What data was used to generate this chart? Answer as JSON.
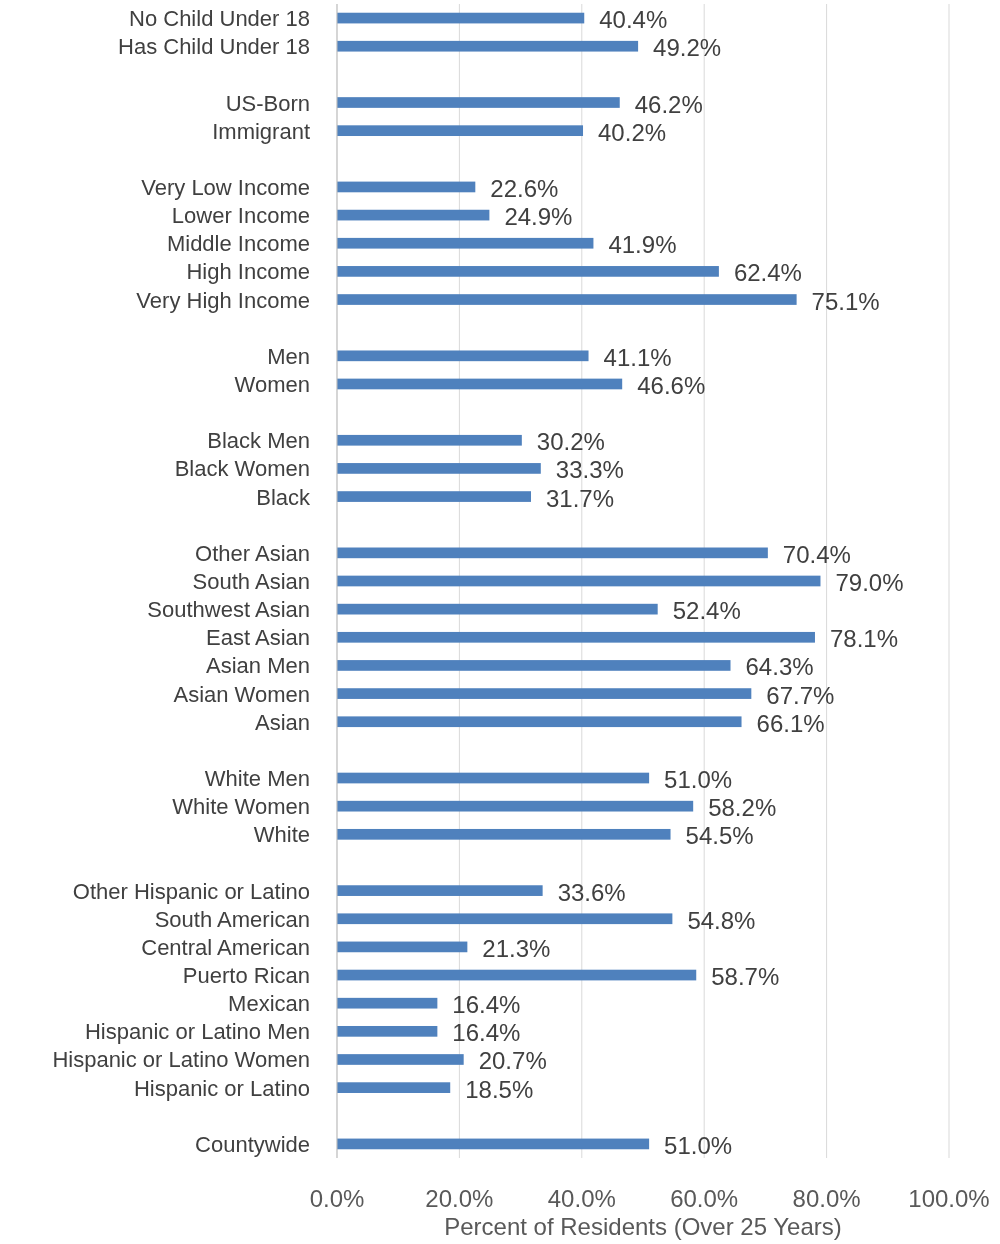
{
  "chart_data": {
    "type": "bar",
    "orientation": "horizontal",
    "xlabel": "Percent of Residents (Over 25 Years)",
    "categories": [
      "No Child Under 18",
      "Has Child Under 18",
      null,
      "US-Born",
      "Immigrant",
      null,
      "Very Low Income",
      "Lower Income",
      "Middle Income",
      "High Income",
      "Very High Income",
      null,
      "Men",
      "Women",
      null,
      "Black Men",
      "Black Women",
      "Black",
      null,
      "Other Asian",
      "South Asian",
      "Southwest Asian",
      "East Asian",
      "Asian Men",
      "Asian Women",
      "Asian",
      null,
      "White Men",
      "White Women",
      "White",
      null,
      "Other Hispanic or Latino",
      "South American",
      "Central American",
      "Puerto Rican",
      "Mexican",
      "Hispanic or Latino Men",
      "Hispanic or Latino Women",
      "Hispanic or Latino",
      null,
      "Countywide"
    ],
    "values": [
      40.4,
      49.2,
      null,
      46.2,
      40.2,
      null,
      22.6,
      24.9,
      41.9,
      62.4,
      75.1,
      null,
      41.1,
      46.6,
      null,
      30.2,
      33.3,
      31.7,
      null,
      70.4,
      79.0,
      52.4,
      78.1,
      64.3,
      67.7,
      66.1,
      null,
      51.0,
      58.2,
      54.5,
      null,
      33.6,
      54.8,
      21.3,
      58.7,
      16.4,
      16.4,
      20.7,
      18.5,
      null,
      51.0
    ],
    "value_labels": [
      "40.4%",
      "49.2%",
      null,
      "46.2%",
      "40.2%",
      null,
      "22.6%",
      "24.9%",
      "41.9%",
      "62.4%",
      "75.1%",
      null,
      "41.1%",
      "46.6%",
      null,
      "30.2%",
      "33.3%",
      "31.7%",
      null,
      "70.4%",
      "79.0%",
      "52.4%",
      "78.1%",
      "64.3%",
      "67.7%",
      "66.1%",
      null,
      "51.0%",
      "58.2%",
      "54.5%",
      null,
      "33.6%",
      "54.8%",
      "21.3%",
      "58.7%",
      "16.4%",
      "16.4%",
      "20.7%",
      "18.5%",
      null,
      "51.0%"
    ],
    "color": "#4f81bd",
    "xlim": [
      0,
      100
    ],
    "xticks": [
      {
        "value": 0,
        "label": "0.0%"
      },
      {
        "value": 20,
        "label": "20.0%"
      },
      {
        "value": 40,
        "label": "40.0%"
      },
      {
        "value": 60,
        "label": "60.0%"
      },
      {
        "value": 80,
        "label": "80.0%"
      },
      {
        "value": 100,
        "label": "100.0%"
      }
    ],
    "grid": "x"
  }
}
